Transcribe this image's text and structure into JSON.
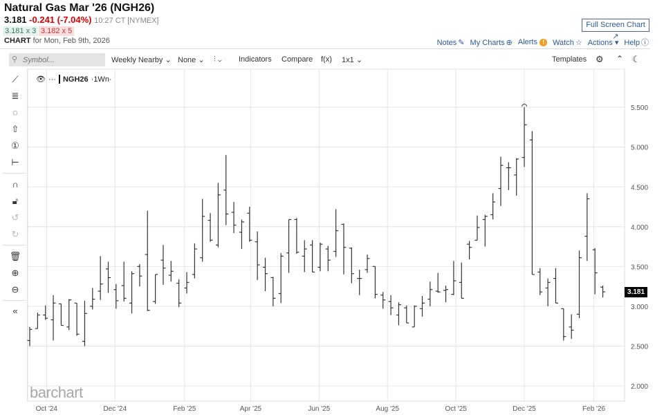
{
  "header": {
    "title": "Natural Gas Mar '26 (NGH26)",
    "last": "3.181",
    "change": "-0.241 (-7.04%)",
    "time": "10:27 CT [NYMEX]",
    "bid": "3.181 x 3",
    "ask": "3.182 x 5",
    "chart_label": "CHART",
    "chart_date": "for Mon, Feb 9th, 2026",
    "full_screen": "Full Screen Chart"
  },
  "links": {
    "notes": "Notes",
    "my_charts": "My Charts",
    "alerts": "Alerts",
    "watch": "Watch",
    "actions": "Actions",
    "help": "Help"
  },
  "toolbar": {
    "symbol_placeholder": "Symbol...",
    "period": "Weekly Nearby",
    "aggregation": "None",
    "indicators": "Indicators",
    "compare": "Compare",
    "fx": "f(x)",
    "layout": "1x1",
    "templates": "Templates"
  },
  "legend": {
    "symbol": "NGH26",
    "interval": "·1Wn·"
  },
  "logo": "barchart",
  "colors": {
    "bars": "#333333",
    "last_label_bg": "#000000",
    "change": "#dd0000",
    "link": "#2a5a9a"
  },
  "chart_data": {
    "type": "ohlc",
    "symbol": "NGH26",
    "interval": "weekly",
    "ylim": [
      1.8,
      5.9
    ],
    "y_ticks": [
      "2.000",
      "2.500",
      "3.000",
      "3.500",
      "4.000",
      "4.500",
      "5.000",
      "5.500"
    ],
    "x_tick_labels": [
      "Oct '24",
      "Dec '24",
      "Feb '25",
      "Apr '25",
      "Jun '25",
      "Aug '25",
      "Oct '25",
      "Dec '25",
      "Feb '26"
    ],
    "x_tick_dates": [
      "2024-10-01",
      "2024-12-01",
      "2025-02-01",
      "2025-04-01",
      "2025-06-01",
      "2025-08-01",
      "2025-10-01",
      "2025-12-01",
      "2026-02-01"
    ],
    "last_price_label": "3.181",
    "grid": true,
    "start_week": "2024-09-16",
    "ohlc": [
      [
        2.57,
        2.74,
        2.5,
        2.71
      ],
      [
        2.72,
        2.92,
        2.72,
        2.89
      ],
      [
        2.89,
        3.01,
        2.83,
        2.85
      ],
      [
        2.83,
        3.14,
        2.57,
        3.04
      ],
      [
        3.03,
        3.03,
        2.76,
        2.76
      ],
      [
        2.74,
        3.09,
        2.7,
        3.08
      ],
      [
        3.04,
        3.04,
        2.63,
        2.65
      ],
      [
        2.56,
        3.07,
        2.5,
        2.91
      ],
      [
        3.0,
        3.23,
        2.96,
        3.09
      ],
      [
        3.19,
        3.63,
        3.08,
        3.28
      ],
      [
        3.47,
        3.56,
        3.17,
        3.36
      ],
      [
        3.21,
        3.28,
        2.97,
        3.07
      ],
      [
        3.26,
        3.56,
        3.06,
        3.1
      ],
      [
        3.04,
        3.44,
        2.91,
        3.41
      ],
      [
        3.5,
        3.53,
        3.25,
        3.38
      ],
      [
        3.65,
        4.2,
        2.94,
        2.95
      ],
      [
        3.06,
        3.4,
        3.03,
        3.4
      ],
      [
        3.58,
        3.77,
        3.27,
        3.48
      ],
      [
        3.39,
        3.57,
        3.31,
        3.44
      ],
      [
        3.29,
        3.34,
        2.99,
        3.04
      ],
      [
        3.23,
        3.43,
        3.16,
        3.3
      ],
      [
        3.4,
        3.79,
        3.35,
        3.72
      ],
      [
        3.61,
        4.35,
        3.56,
        4.13
      ],
      [
        4.08,
        4.17,
        3.81,
        3.83
      ],
      [
        3.77,
        4.55,
        3.74,
        4.4
      ],
      [
        4.46,
        4.9,
        4.02,
        4.16
      ],
      [
        4.18,
        4.31,
        3.92,
        4.02
      ],
      [
        3.93,
        4.09,
        3.72,
        4.06
      ],
      [
        4.17,
        4.25,
        3.81,
        3.83
      ],
      [
        3.81,
        3.94,
        3.33,
        3.52
      ],
      [
        3.49,
        3.61,
        3.19,
        3.41
      ],
      [
        3.36,
        3.37,
        3.0,
        3.1
      ],
      [
        3.16,
        3.67,
        3.04,
        3.63
      ],
      [
        3.67,
        4.09,
        3.42,
        4.09
      ],
      [
        4.09,
        4.11,
        3.66,
        3.68
      ],
      [
        3.63,
        3.83,
        3.43,
        3.72
      ],
      [
        3.77,
        3.83,
        3.43,
        3.43
      ],
      [
        3.49,
        3.8,
        3.44,
        3.78
      ],
      [
        3.72,
        3.76,
        3.44,
        3.58
      ],
      [
        3.69,
        4.22,
        3.62,
        3.95
      ],
      [
        4.03,
        4.04,
        3.4,
        3.74
      ],
      [
        3.73,
        3.74,
        3.29,
        3.41
      ],
      [
        3.35,
        3.46,
        3.14,
        3.35
      ],
      [
        3.46,
        3.65,
        3.42,
        3.6
      ],
      [
        3.5,
        3.5,
        3.1,
        3.15
      ],
      [
        3.14,
        3.18,
        2.97,
        3.08
      ],
      [
        3.06,
        3.14,
        2.89,
        2.98
      ],
      [
        2.89,
        3.05,
        2.76,
        3.02
      ],
      [
        2.98,
        3.01,
        2.79,
        2.79
      ],
      [
        2.74,
        3.01,
        2.74,
        3.0
      ],
      [
        2.97,
        3.13,
        2.87,
        3.04
      ],
      [
        3.09,
        3.31,
        3.0,
        3.21
      ],
      [
        3.19,
        3.42,
        3.17,
        3.18
      ],
      [
        3.2,
        3.26,
        3.05,
        3.21
      ],
      [
        3.15,
        3.57,
        3.14,
        3.32
      ],
      [
        3.3,
        3.55,
        3.1,
        3.1
      ],
      [
        3.78,
        3.82,
        3.59,
        3.74
      ],
      [
        3.83,
        4.14,
        3.83,
        3.99
      ],
      [
        4.09,
        4.15,
        3.75,
        4.13
      ],
      [
        4.15,
        4.42,
        4.09,
        4.31
      ],
      [
        4.48,
        4.88,
        4.26,
        4.77
      ],
      [
        4.74,
        4.81,
        4.46,
        4.74
      ],
      [
        4.65,
        4.86,
        4.39,
        4.85
      ],
      [
        4.87,
        5.5,
        4.75,
        5.28
      ],
      [
        5.09,
        5.2,
        3.4,
        3.4
      ],
      [
        3.43,
        3.48,
        3.14,
        3.18
      ],
      [
        3.23,
        3.35,
        3.0,
        3.3
      ],
      [
        3.35,
        3.48,
        3.04,
        3.04
      ],
      [
        2.97,
        2.97,
        2.57,
        2.62
      ],
      [
        2.74,
        2.9,
        2.59,
        2.7
      ],
      [
        2.9,
        3.7,
        2.85,
        3.61
      ],
      [
        3.88,
        4.42,
        3.57,
        4.35
      ],
      [
        3.71,
        3.73,
        3.15,
        3.42
      ],
      [
        3.24,
        3.26,
        3.11,
        3.181
      ]
    ]
  }
}
